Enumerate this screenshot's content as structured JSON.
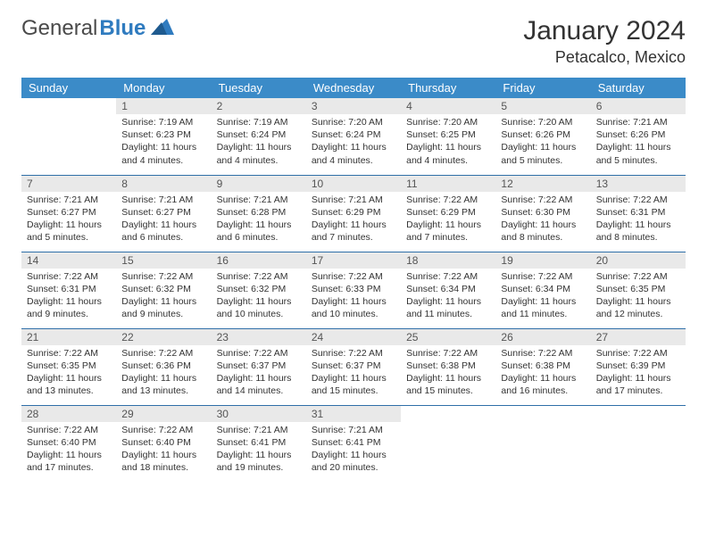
{
  "brand": {
    "word1": "General",
    "word2": "Blue"
  },
  "title": "January 2024",
  "location": "Petacalco, Mexico",
  "colors": {
    "header_bg": "#3b8bc8",
    "header_text": "#ffffff",
    "daynum_bg": "#e9e9e9",
    "row_border": "#2f6fa8",
    "logo_blue": "#2f7bbf",
    "body_text": "#333333",
    "page_bg": "#ffffff"
  },
  "weekdays": [
    "Sunday",
    "Monday",
    "Tuesday",
    "Wednesday",
    "Thursday",
    "Friday",
    "Saturday"
  ],
  "layout": {
    "rows": 5,
    "cols": 7,
    "first_weekday_index": 1,
    "days_in_month": 31
  },
  "days": {
    "1": {
      "sunrise": "Sunrise: 7:19 AM",
      "sunset": "Sunset: 6:23 PM",
      "daylight": "Daylight: 11 hours and 4 minutes."
    },
    "2": {
      "sunrise": "Sunrise: 7:19 AM",
      "sunset": "Sunset: 6:24 PM",
      "daylight": "Daylight: 11 hours and 4 minutes."
    },
    "3": {
      "sunrise": "Sunrise: 7:20 AM",
      "sunset": "Sunset: 6:24 PM",
      "daylight": "Daylight: 11 hours and 4 minutes."
    },
    "4": {
      "sunrise": "Sunrise: 7:20 AM",
      "sunset": "Sunset: 6:25 PM",
      "daylight": "Daylight: 11 hours and 4 minutes."
    },
    "5": {
      "sunrise": "Sunrise: 7:20 AM",
      "sunset": "Sunset: 6:26 PM",
      "daylight": "Daylight: 11 hours and 5 minutes."
    },
    "6": {
      "sunrise": "Sunrise: 7:21 AM",
      "sunset": "Sunset: 6:26 PM",
      "daylight": "Daylight: 11 hours and 5 minutes."
    },
    "7": {
      "sunrise": "Sunrise: 7:21 AM",
      "sunset": "Sunset: 6:27 PM",
      "daylight": "Daylight: 11 hours and 5 minutes."
    },
    "8": {
      "sunrise": "Sunrise: 7:21 AM",
      "sunset": "Sunset: 6:27 PM",
      "daylight": "Daylight: 11 hours and 6 minutes."
    },
    "9": {
      "sunrise": "Sunrise: 7:21 AM",
      "sunset": "Sunset: 6:28 PM",
      "daylight": "Daylight: 11 hours and 6 minutes."
    },
    "10": {
      "sunrise": "Sunrise: 7:21 AM",
      "sunset": "Sunset: 6:29 PM",
      "daylight": "Daylight: 11 hours and 7 minutes."
    },
    "11": {
      "sunrise": "Sunrise: 7:22 AM",
      "sunset": "Sunset: 6:29 PM",
      "daylight": "Daylight: 11 hours and 7 minutes."
    },
    "12": {
      "sunrise": "Sunrise: 7:22 AM",
      "sunset": "Sunset: 6:30 PM",
      "daylight": "Daylight: 11 hours and 8 minutes."
    },
    "13": {
      "sunrise": "Sunrise: 7:22 AM",
      "sunset": "Sunset: 6:31 PM",
      "daylight": "Daylight: 11 hours and 8 minutes."
    },
    "14": {
      "sunrise": "Sunrise: 7:22 AM",
      "sunset": "Sunset: 6:31 PM",
      "daylight": "Daylight: 11 hours and 9 minutes."
    },
    "15": {
      "sunrise": "Sunrise: 7:22 AM",
      "sunset": "Sunset: 6:32 PM",
      "daylight": "Daylight: 11 hours and 9 minutes."
    },
    "16": {
      "sunrise": "Sunrise: 7:22 AM",
      "sunset": "Sunset: 6:32 PM",
      "daylight": "Daylight: 11 hours and 10 minutes."
    },
    "17": {
      "sunrise": "Sunrise: 7:22 AM",
      "sunset": "Sunset: 6:33 PM",
      "daylight": "Daylight: 11 hours and 10 minutes."
    },
    "18": {
      "sunrise": "Sunrise: 7:22 AM",
      "sunset": "Sunset: 6:34 PM",
      "daylight": "Daylight: 11 hours and 11 minutes."
    },
    "19": {
      "sunrise": "Sunrise: 7:22 AM",
      "sunset": "Sunset: 6:34 PM",
      "daylight": "Daylight: 11 hours and 11 minutes."
    },
    "20": {
      "sunrise": "Sunrise: 7:22 AM",
      "sunset": "Sunset: 6:35 PM",
      "daylight": "Daylight: 11 hours and 12 minutes."
    },
    "21": {
      "sunrise": "Sunrise: 7:22 AM",
      "sunset": "Sunset: 6:35 PM",
      "daylight": "Daylight: 11 hours and 13 minutes."
    },
    "22": {
      "sunrise": "Sunrise: 7:22 AM",
      "sunset": "Sunset: 6:36 PM",
      "daylight": "Daylight: 11 hours and 13 minutes."
    },
    "23": {
      "sunrise": "Sunrise: 7:22 AM",
      "sunset": "Sunset: 6:37 PM",
      "daylight": "Daylight: 11 hours and 14 minutes."
    },
    "24": {
      "sunrise": "Sunrise: 7:22 AM",
      "sunset": "Sunset: 6:37 PM",
      "daylight": "Daylight: 11 hours and 15 minutes."
    },
    "25": {
      "sunrise": "Sunrise: 7:22 AM",
      "sunset": "Sunset: 6:38 PM",
      "daylight": "Daylight: 11 hours and 15 minutes."
    },
    "26": {
      "sunrise": "Sunrise: 7:22 AM",
      "sunset": "Sunset: 6:38 PM",
      "daylight": "Daylight: 11 hours and 16 minutes."
    },
    "27": {
      "sunrise": "Sunrise: 7:22 AM",
      "sunset": "Sunset: 6:39 PM",
      "daylight": "Daylight: 11 hours and 17 minutes."
    },
    "28": {
      "sunrise": "Sunrise: 7:22 AM",
      "sunset": "Sunset: 6:40 PM",
      "daylight": "Daylight: 11 hours and 17 minutes."
    },
    "29": {
      "sunrise": "Sunrise: 7:22 AM",
      "sunset": "Sunset: 6:40 PM",
      "daylight": "Daylight: 11 hours and 18 minutes."
    },
    "30": {
      "sunrise": "Sunrise: 7:21 AM",
      "sunset": "Sunset: 6:41 PM",
      "daylight": "Daylight: 11 hours and 19 minutes."
    },
    "31": {
      "sunrise": "Sunrise: 7:21 AM",
      "sunset": "Sunset: 6:41 PM",
      "daylight": "Daylight: 11 hours and 20 minutes."
    }
  }
}
